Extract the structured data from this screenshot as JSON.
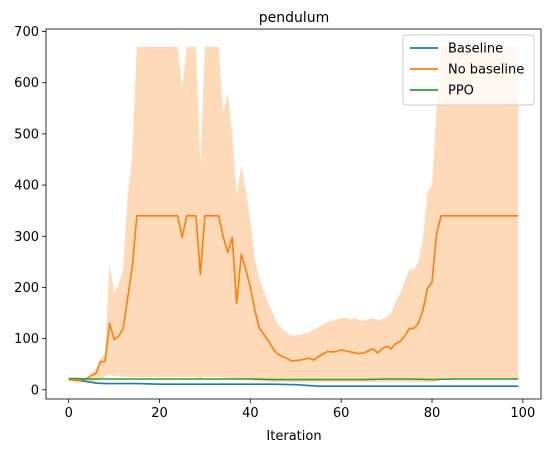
{
  "chart_data": {
    "type": "line",
    "title": "pendulum",
    "xlabel": "Iteration",
    "ylabel": "",
    "xlim": [
      -5,
      104
    ],
    "ylim": [
      -18,
      705
    ],
    "xticks": [
      0,
      20,
      40,
      60,
      80,
      100
    ],
    "yticks": [
      0,
      100,
      200,
      300,
      400,
      500,
      600,
      700
    ],
    "grid": false,
    "legend_position": "upper right",
    "series": [
      {
        "name": "Baseline",
        "color": "#1f77b4",
        "x": [
          0,
          2,
          4,
          6,
          8,
          10,
          15,
          20,
          25,
          30,
          35,
          40,
          45,
          50,
          55,
          60,
          65,
          70,
          75,
          80,
          85,
          90,
          95,
          99
        ],
        "values": [
          20,
          19,
          16,
          13,
          12,
          12,
          12,
          11,
          11,
          11,
          11,
          11,
          11,
          10,
          7,
          7,
          7,
          7,
          7,
          7,
          7,
          7,
          7,
          7
        ]
      },
      {
        "name": "No baseline",
        "color": "#ff7f0e",
        "band_color": "#ffdab8",
        "x": [
          0,
          1,
          2,
          3,
          4,
          5,
          6,
          7,
          8,
          9,
          10,
          11,
          12,
          13,
          14,
          15,
          16,
          17,
          18,
          19,
          20,
          21,
          22,
          23,
          24,
          25,
          26,
          27,
          28,
          29,
          30,
          31,
          32,
          33,
          34,
          35,
          36,
          37,
          38,
          39,
          40,
          41,
          42,
          43,
          44,
          45,
          46,
          47,
          48,
          49,
          50,
          51,
          52,
          53,
          54,
          55,
          56,
          57,
          58,
          59,
          60,
          61,
          62,
          63,
          64,
          65,
          66,
          67,
          68,
          69,
          70,
          71,
          72,
          73,
          74,
          75,
          76,
          77,
          78,
          79,
          80,
          81,
          82,
          83,
          84,
          85,
          86,
          87,
          88,
          89,
          90,
          91,
          92,
          93,
          94,
          95,
          96,
          97,
          98,
          99
        ],
        "values": [
          20,
          20,
          18,
          20,
          22,
          28,
          32,
          55,
          55,
          130,
          98,
          105,
          120,
          180,
          240,
          340,
          340,
          340,
          340,
          340,
          340,
          340,
          340,
          340,
          340,
          298,
          340,
          340,
          340,
          225,
          340,
          340,
          340,
          340,
          300,
          268,
          298,
          168,
          265,
          235,
          200,
          155,
          120,
          108,
          95,
          80,
          70,
          65,
          62,
          56,
          57,
          58,
          60,
          62,
          58,
          65,
          70,
          75,
          74,
          75,
          78,
          76,
          74,
          72,
          71,
          72,
          76,
          80,
          72,
          80,
          85,
          80,
          90,
          95,
          105,
          120,
          120,
          130,
          155,
          198,
          210,
          305,
          340,
          340,
          340,
          340,
          340,
          340,
          340,
          340,
          340,
          340,
          340,
          340,
          340,
          340,
          340,
          340,
          340,
          340
        ],
        "band_upper": [
          20,
          20,
          20,
          22,
          25,
          32,
          40,
          62,
          70,
          248,
          190,
          205,
          238,
          380,
          460,
          670,
          670,
          670,
          670,
          670,
          670,
          670,
          670,
          670,
          670,
          590,
          670,
          670,
          670,
          440,
          670,
          670,
          670,
          670,
          540,
          580,
          500,
          380,
          440,
          390,
          330,
          255,
          215,
          192,
          168,
          148,
          128,
          120,
          112,
          106,
          106,
          108,
          110,
          112,
          118,
          122,
          128,
          133,
          135,
          138,
          140,
          140,
          138,
          140,
          136,
          135,
          138,
          140,
          136,
          138,
          142,
          150,
          172,
          188,
          212,
          235,
          235,
          250,
          295,
          385,
          400,
          550,
          670,
          670,
          670,
          670,
          670,
          670,
          670,
          670,
          670,
          670,
          670,
          670,
          670,
          670,
          670,
          670,
          670,
          670
        ],
        "band_lower": [
          18,
          16,
          14,
          14,
          15,
          15,
          15,
          20,
          25,
          30,
          25,
          28,
          25,
          25,
          25,
          25,
          25,
          25,
          25,
          25,
          25,
          25,
          25,
          25,
          25,
          24,
          25,
          25,
          25,
          22,
          25,
          25,
          25,
          25,
          24,
          22,
          24,
          18,
          23,
          20,
          20,
          18,
          16,
          16,
          16,
          15,
          15,
          15,
          15,
          15,
          15,
          15,
          15,
          15,
          15,
          15,
          15,
          15,
          15,
          15,
          15,
          15,
          15,
          15,
          15,
          15,
          15,
          15,
          15,
          15,
          15,
          15,
          15,
          15,
          15,
          15,
          15,
          15,
          15,
          15,
          15,
          16,
          20,
          20,
          20,
          20,
          20,
          20,
          20,
          20,
          20,
          20,
          20,
          20,
          20,
          20,
          20,
          20,
          20,
          20
        ]
      },
      {
        "name": "PPO",
        "color": "#2ca02c",
        "x": [
          0,
          2,
          4,
          6,
          8,
          10,
          15,
          20,
          25,
          30,
          35,
          40,
          45,
          50,
          55,
          60,
          65,
          70,
          75,
          80,
          85,
          90,
          95,
          99
        ],
        "values": [
          22,
          22,
          21,
          21,
          21,
          21,
          21,
          21,
          21,
          21,
          21,
          21,
          20,
          20,
          20,
          20,
          20,
          21,
          21,
          20,
          21,
          21,
          21,
          21
        ]
      }
    ]
  }
}
